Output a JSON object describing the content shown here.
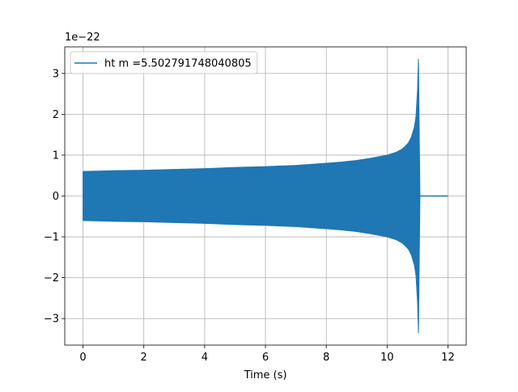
{
  "chart_data": {
    "type": "line",
    "title": "",
    "xlabel": "Time (s)",
    "ylabel": "",
    "y_offset_label": "1e−22",
    "xlim": [
      -0.6,
      12.6
    ],
    "ylim": [
      -3.65,
      3.65
    ],
    "x_ticks": [
      0,
      2,
      4,
      6,
      8,
      10,
      12
    ],
    "x_tick_labels": [
      "0",
      "2",
      "4",
      "6",
      "8",
      "10",
      "12"
    ],
    "y_ticks": [
      -3,
      -2,
      -1,
      0,
      1,
      2,
      3
    ],
    "y_tick_labels": [
      "−3",
      "−2",
      "−1",
      "0",
      "1",
      "2",
      "3"
    ],
    "grid": true,
    "legend_position": "upper-left",
    "series": [
      {
        "name": "ht m =5.502791748040805",
        "color": "#1f77b4",
        "envelope": {
          "x": [
            0,
            1,
            2,
            3,
            4,
            5,
            6,
            7,
            8,
            8.5,
            9,
            9.5,
            10,
            10.3,
            10.5,
            10.7,
            10.8,
            10.9,
            10.95,
            11.0,
            11.03,
            11.05,
            11.08
          ],
          "upper": [
            0.6,
            0.62,
            0.63,
            0.65,
            0.67,
            0.7,
            0.72,
            0.75,
            0.8,
            0.83,
            0.87,
            0.93,
            1.0,
            1.07,
            1.15,
            1.3,
            1.45,
            1.7,
            1.95,
            2.6,
            3.35,
            2.0,
            0.0
          ],
          "lower": [
            -0.6,
            -0.62,
            -0.63,
            -0.65,
            -0.67,
            -0.7,
            -0.72,
            -0.75,
            -0.8,
            -0.83,
            -0.87,
            -0.93,
            -1.0,
            -1.07,
            -1.15,
            -1.3,
            -1.45,
            -1.7,
            -1.95,
            -2.6,
            -3.35,
            -2.0,
            0.0
          ]
        },
        "flat_segment": {
          "x": [
            11.08,
            12.0
          ],
          "y": [
            0,
            0
          ]
        }
      }
    ]
  }
}
